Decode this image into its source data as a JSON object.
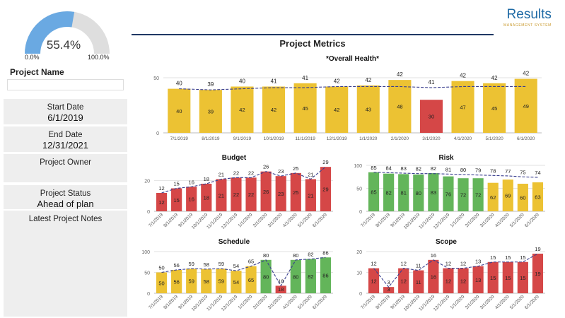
{
  "gauge": {
    "value_label": "55.4%",
    "value": 55.4,
    "min_label": "0.0%",
    "max_label": "100.0%",
    "fill_color": "#6aa9e2",
    "track_color": "#dedede"
  },
  "project": {
    "name_label": "Project Name",
    "name_value": "",
    "start_date_label": "Start Date",
    "start_date": "6/1/2019",
    "end_date_label": "End Date",
    "end_date": "12/31/2021",
    "owner_label": "Project Owner",
    "owner": "",
    "status_label": "Project Status",
    "status": "Ahead of plan",
    "notes_label": "Latest Project Notes",
    "notes": ""
  },
  "logo": {
    "main": "Results",
    "sub": "MANAGEMENT SYSTEM"
  },
  "dashboard": {
    "title": "Project Metrics"
  },
  "colors": {
    "yellow": "#ecc233",
    "red": "#d54747",
    "green": "#63b55a",
    "trend": "#3a3f8f",
    "title_line": "#1f3864"
  },
  "chart_data": [
    {
      "type": "bar",
      "title": "*Overall Health*",
      "categories": [
        "7/1/2019",
        "8/1/2019",
        "9/1/2019",
        "10/1/2019",
        "11/1/2019",
        "12/1/2019",
        "1/1/2020",
        "2/1/2020",
        "3/1/2020",
        "4/1/2020",
        "5/1/2020",
        "6/1/2020"
      ],
      "values": [
        40,
        39,
        42,
        42,
        45,
        42,
        43,
        48,
        30,
        47,
        45,
        49
      ],
      "trend": [
        40,
        39,
        40,
        41,
        41,
        42,
        42,
        42,
        41,
        42,
        42,
        42
      ],
      "bar_colors": [
        "yellow",
        "yellow",
        "yellow",
        "yellow",
        "yellow",
        "yellow",
        "yellow",
        "yellow",
        "red",
        "yellow",
        "yellow",
        "yellow"
      ],
      "ylim": [
        0,
        50
      ],
      "yticks": [
        0,
        50
      ],
      "grid": true
    },
    {
      "type": "bar",
      "title": "Budget",
      "categories": [
        "7/1/2019",
        "8/1/2019",
        "9/1/2019",
        "10/1/2019",
        "11/1/2019",
        "12/1/2019",
        "1/1/2020",
        "2/1/2020",
        "3/1/2020",
        "4/1/2020",
        "5/1/2020",
        "6/1/2020"
      ],
      "values": [
        12,
        15,
        16,
        18,
        21,
        22,
        22,
        26,
        23,
        25,
        21,
        29
      ],
      "trend": [
        12,
        15,
        16,
        18,
        21,
        22,
        22,
        26,
        23,
        25,
        21,
        29
      ],
      "bar_colors": [
        "red",
        "red",
        "red",
        "red",
        "red",
        "red",
        "red",
        "red",
        "red",
        "red",
        "red",
        "red"
      ],
      "ylim": [
        0,
        30
      ],
      "yticks": [
        0,
        20
      ],
      "grid": true
    },
    {
      "type": "bar",
      "title": "Risk",
      "categories": [
        "7/1/2019",
        "8/1/2019",
        "9/1/2019",
        "10/1/2019",
        "11/1/2019",
        "12/1/2019",
        "1/1/2020",
        "2/1/2020",
        "3/1/2020",
        "4/1/2020",
        "5/1/2020",
        "6/1/2020"
      ],
      "values": [
        85,
        82,
        81,
        80,
        83,
        76,
        72,
        72,
        62,
        69,
        60,
        63
      ],
      "trend": [
        85,
        84,
        83,
        82,
        82,
        81,
        80,
        79,
        78,
        77,
        75,
        74
      ],
      "bar_colors": [
        "green",
        "green",
        "green",
        "green",
        "green",
        "green",
        "green",
        "green",
        "yellow",
        "yellow",
        "yellow",
        "yellow"
      ],
      "ylim": [
        0,
        100
      ],
      "yticks": [
        0,
        50,
        100
      ],
      "grid": true
    },
    {
      "type": "bar",
      "title": "Schedule",
      "categories": [
        "7/1/2019",
        "8/1/2019",
        "9/1/2019",
        "10/1/2019",
        "11/1/2019",
        "12/1/2019",
        "1/1/2020",
        "2/1/2020",
        "3/1/2020",
        "4/1/2020",
        "5/1/2020",
        "6/1/2020"
      ],
      "values": [
        50,
        56,
        59,
        58,
        59,
        54,
        65,
        80,
        18,
        80,
        82,
        86
      ],
      "trend": [
        50,
        56,
        59,
        58,
        59,
        54,
        65,
        80,
        18,
        80,
        82,
        86
      ],
      "bar_colors": [
        "yellow",
        "yellow",
        "yellow",
        "yellow",
        "yellow",
        "yellow",
        "yellow",
        "green",
        "red",
        "green",
        "green",
        "green"
      ],
      "ylim": [
        0,
        100
      ],
      "yticks": [
        0,
        50,
        100
      ],
      "grid": true
    },
    {
      "type": "bar",
      "title": "Scope",
      "categories": [
        "7/1/2019",
        "8/1/2019",
        "9/1/2019",
        "10/1/2019",
        "11/1/2019",
        "12/1/2019",
        "1/1/2020",
        "2/1/2020",
        "3/1/2020",
        "4/1/2020",
        "5/1/2020",
        "6/1/2020"
      ],
      "values": [
        12,
        3,
        12,
        11,
        16,
        12,
        12,
        13,
        15,
        15,
        15,
        19
      ],
      "trend": [
        12,
        3,
        12,
        11,
        16,
        12,
        12,
        13,
        15,
        15,
        15,
        19
      ],
      "bar_colors": [
        "red",
        "red",
        "red",
        "red",
        "red",
        "red",
        "red",
        "red",
        "red",
        "red",
        "red",
        "red"
      ],
      "ylim": [
        0,
        20
      ],
      "yticks": [
        0,
        10,
        20
      ],
      "grid": true
    }
  ]
}
